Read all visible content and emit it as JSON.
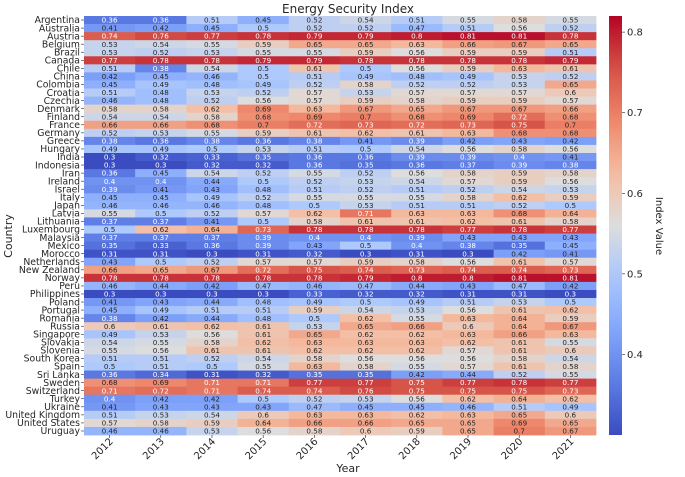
{
  "chart_data": {
    "type": "heatmap",
    "title": "Energy Security Index",
    "xlabel": "Year",
    "ylabel": "Country",
    "colorbar_label": "Index Value",
    "colorbar_range": [
      0.3,
      0.82
    ],
    "colorbar_ticks": [
      "0.4",
      "0.5",
      "0.6",
      "0.7",
      "0.8"
    ],
    "colorbar_tick_values": [
      0.4,
      0.5,
      0.6,
      0.7,
      0.8
    ],
    "years": [
      "2012",
      "2013",
      "2014",
      "2015",
      "2016",
      "2017",
      "2018",
      "2019",
      "2020",
      "2021"
    ],
    "countries": [
      "Argentina",
      "Australia",
      "Austria",
      "Belgium",
      "Brazil",
      "Canada",
      "Chile",
      "China",
      "Colombia",
      "Croatia",
      "Czechia",
      "Denmark",
      "Finland",
      "France",
      "Germany",
      "Greece",
      "Hungary",
      "India",
      "Indonesia",
      "Iran",
      "Ireland",
      "Israel",
      "Italy",
      "Japan",
      "Latvia",
      "Lithuania",
      "Luxembourg",
      "Malaysia",
      "Mexico",
      "Morocco",
      "Netherlands",
      "New Zealand",
      "Norway",
      "Peru",
      "Philippines",
      "Poland",
      "Portugal",
      "Romania",
      "Russia",
      "Singapore",
      "Slovakia",
      "Slovenia",
      "South Korea",
      "Spain",
      "Sri Lanka",
      "Sweden",
      "Switzerland",
      "Turkey",
      "Ukraine",
      "United Kingdom",
      "United States",
      "Uruguay"
    ],
    "cells": [
      [
        "0.36",
        "0.36",
        "0.51",
        "0.45",
        "0.52",
        "0.54",
        "0.51",
        "0.55",
        "0.58",
        "0.55"
      ],
      [
        "0.41",
        "0.42",
        "0.45",
        "0.5",
        "0.52",
        "0.52",
        "0.47",
        "0.51",
        "0.56",
        "0.52"
      ],
      [
        "0.74",
        "0.76",
        "0.77",
        "0.78",
        "0.79",
        "0.79",
        "0.8",
        "0.81",
        "0.81",
        "0.78"
      ],
      [
        "0.53",
        "0.54",
        "0.55",
        "0.59",
        "0.65",
        "0.65",
        "0.63",
        "0.66",
        "0.67",
        "0.65"
      ],
      [
        "0.53",
        "0.52",
        "0.53",
        "0.55",
        "0.55",
        "0.59",
        "0.56",
        "0.59",
        "0.59",
        "0.51"
      ],
      [
        "0.77",
        "0.78",
        "0.78",
        "0.79",
        "0.79",
        "0.78",
        "0.78",
        "0.78",
        "0.78",
        "0.79"
      ],
      [
        "0.51",
        "0.38",
        "0.54",
        "0.5",
        "0.61",
        "0.5",
        "0.56",
        "0.59",
        "0.63",
        "0.61"
      ],
      [
        "0.42",
        "0.45",
        "0.46",
        "0.5",
        "0.51",
        "0.49",
        "0.48",
        "0.49",
        "0.53",
        "0.52"
      ],
      [
        "0.45",
        "0.49",
        "0.48",
        "0.49",
        "0.52",
        "0.58",
        "0.52",
        "0.52",
        "0.53",
        "0.65"
      ],
      [
        "0.51",
        "0.48",
        "0.53",
        "0.52",
        "0.57",
        "0.53",
        "0.57",
        "0.57",
        "0.57",
        "0.6"
      ],
      [
        "0.46",
        "0.48",
        "0.52",
        "0.56",
        "0.57",
        "0.59",
        "0.58",
        "0.59",
        "0.59",
        "0.57"
      ],
      [
        "0.58",
        "0.58",
        "0.62",
        "0.69",
        "0.63",
        "0.67",
        "0.65",
        "0.67",
        "0.67",
        "0.66"
      ],
      [
        "0.54",
        "0.54",
        "0.58",
        "0.68",
        "0.69",
        "0.7",
        "0.68",
        "0.69",
        "0.72",
        "0.68"
      ],
      [
        "0.66",
        "0.66",
        "0.68",
        "0.7",
        "0.72",
        "0.73",
        "0.72",
        "0.73",
        "0.75",
        "0.7"
      ],
      [
        "0.52",
        "0.53",
        "0.55",
        "0.59",
        "0.61",
        "0.62",
        "0.61",
        "0.63",
        "0.68",
        "0.68"
      ],
      [
        "0.38",
        "0.36",
        "0.38",
        "0.36",
        "0.38",
        "0.41",
        "0.39",
        "0.42",
        "0.43",
        "0.42"
      ],
      [
        "0.49",
        "0.49",
        "0.5",
        "0.53",
        "0.51",
        "0.5",
        "0.54",
        "0.56",
        "0.58",
        "0.56"
      ],
      [
        "0.3",
        "0.32",
        "0.33",
        "0.35",
        "0.36",
        "0.36",
        "0.39",
        "0.39",
        "0.4",
        "0.41"
      ],
      [
        "0.3",
        "0.3",
        "0.32",
        "0.32",
        "0.36",
        "0.35",
        "0.36",
        "0.37",
        "0.39",
        "0.38"
      ],
      [
        "0.36",
        "0.45",
        "0.54",
        "0.52",
        "0.55",
        "0.52",
        "0.56",
        "0.58",
        "0.59",
        "0.58"
      ],
      [
        "0.4",
        "0.4",
        "0.44",
        "0.5",
        "0.52",
        "0.53",
        "0.54",
        "0.57",
        "0.59",
        "0.56"
      ],
      [
        "0.39",
        "0.41",
        "0.43",
        "0.48",
        "0.51",
        "0.52",
        "0.51",
        "0.52",
        "0.54",
        "0.53"
      ],
      [
        "0.45",
        "0.45",
        "0.49",
        "0.52",
        "0.55",
        "0.55",
        "0.55",
        "0.58",
        "0.62",
        "0.59"
      ],
      [
        "0.46",
        "0.46",
        "0.46",
        "0.48",
        "0.5",
        "0.53",
        "0.51",
        "0.51",
        "0.52",
        "0.5"
      ],
      [
        "0.55",
        "0.5",
        "0.52",
        "0.57",
        "0.62",
        "0.71",
        "0.63",
        "0.63",
        "0.68",
        "0.64"
      ],
      [
        "0.37",
        "0.37",
        "0.41",
        "0.5",
        "0.58",
        "0.61",
        "0.61",
        "0.62",
        "0.61",
        "0.58"
      ],
      [
        "0.5",
        "0.62",
        "0.64",
        "0.73",
        "0.78",
        "0.78",
        "0.78",
        "0.77",
        "0.78",
        "0.77"
      ],
      [
        "0.37",
        "0.37",
        "0.37",
        "0.39",
        "0.4",
        "0.4",
        "0.39",
        "0.43",
        "0.43",
        "0.43"
      ],
      [
        "0.35",
        "0.33",
        "0.36",
        "0.39",
        "0.43",
        "0.5",
        "0.4",
        "0.38",
        "0.35",
        "0.45"
      ],
      [
        "0.31",
        "0.31",
        "0.3",
        "0.31",
        "0.32",
        "0.3",
        "0.31",
        "0.3",
        "0.42",
        "0.41"
      ],
      [
        "0.43",
        "0.5",
        "0.52",
        "0.57",
        "0.57",
        "0.59",
        "0.58",
        "0.56",
        "0.61",
        "0.57"
      ],
      [
        "0.66",
        "0.65",
        "0.67",
        "0.72",
        "0.75",
        "0.74",
        "0.73",
        "0.74",
        "0.74",
        "0.73"
      ],
      [
        "0.78",
        "0.78",
        "0.78",
        "0.78",
        "0.78",
        "0.79",
        "0.8",
        "0.8",
        "0.81",
        "0.81"
      ],
      [
        "0.46",
        "0.44",
        "0.42",
        "0.47",
        "0.46",
        "0.47",
        "0.44",
        "0.43",
        "0.47",
        "0.42"
      ],
      [
        "0.3",
        "0.3",
        "0.3",
        "0.3",
        "0.33",
        "0.32",
        "0.32",
        "0.31",
        "0.31",
        "0.3"
      ],
      [
        "0.41",
        "0.43",
        "0.44",
        "0.48",
        "0.49",
        "0.5",
        "0.49",
        "0.51",
        "0.53",
        "0.5"
      ],
      [
        "0.45",
        "0.49",
        "0.51",
        "0.51",
        "0.59",
        "0.54",
        "0.53",
        "0.56",
        "0.61",
        "0.62"
      ],
      [
        "0.38",
        "0.42",
        "0.44",
        "0.48",
        "0.5",
        "0.62",
        "0.55",
        "0.63",
        "0.64",
        "0.59"
      ],
      [
        "0.6",
        "0.61",
        "0.62",
        "0.61",
        "0.53",
        "0.65",
        "0.66",
        "0.6",
        "0.64",
        "0.67"
      ],
      [
        "0.49",
        "0.53",
        "0.56",
        "0.61",
        "0.65",
        "0.62",
        "0.62",
        "0.63",
        "0.66",
        "0.63"
      ],
      [
        "0.54",
        "0.55",
        "0.58",
        "0.62",
        "0.63",
        "0.63",
        "0.63",
        "0.62",
        "0.61",
        "0.55"
      ],
      [
        "0.55",
        "0.56",
        "0.61",
        "0.61",
        "0.62",
        "0.62",
        "0.62",
        "0.57",
        "0.61",
        "0.6"
      ],
      [
        "0.51",
        "0.51",
        "0.52",
        "0.54",
        "0.58",
        "0.56",
        "0.56",
        "0.56",
        "0.58",
        "0.54"
      ],
      [
        "0.5",
        "0.51",
        "0.5",
        "0.55",
        "0.63",
        "0.58",
        "0.55",
        "0.57",
        "0.61",
        "0.58"
      ],
      [
        "0.36",
        "0.34",
        "0.31",
        "0.32",
        "0.35",
        "0.35",
        "0.42",
        "0.44",
        "0.52",
        "0.55"
      ],
      [
        "0.68",
        "0.69",
        "0.71",
        "0.71",
        "0.77",
        "0.77",
        "0.75",
        "0.77",
        "0.78",
        "0.77"
      ],
      [
        "0.71",
        "0.72",
        "0.71",
        "0.74",
        "0.74",
        "0.76",
        "0.75",
        "0.75",
        "0.75",
        "0.73"
      ],
      [
        "0.4",
        "0.42",
        "0.42",
        "0.5",
        "0.52",
        "0.53",
        "0.56",
        "0.62",
        "0.64",
        "0.62"
      ],
      [
        "0.41",
        "0.43",
        "0.43",
        "0.43",
        "0.47",
        "0.45",
        "0.45",
        "0.46",
        "0.51",
        "0.49"
      ],
      [
        "0.51",
        "0.53",
        "0.54",
        "0.6",
        "0.63",
        "0.63",
        "0.62",
        "0.63",
        "0.65",
        "0.6"
      ],
      [
        "0.57",
        "0.58",
        "0.59",
        "0.64",
        "0.66",
        "0.66",
        "0.65",
        "0.65",
        "0.69",
        "0.65"
      ],
      [
        "0.46",
        "0.46",
        "0.53",
        "0.56",
        "0.58",
        "0.6",
        "0.59",
        "0.65",
        "0.7",
        "0.67"
      ]
    ]
  }
}
